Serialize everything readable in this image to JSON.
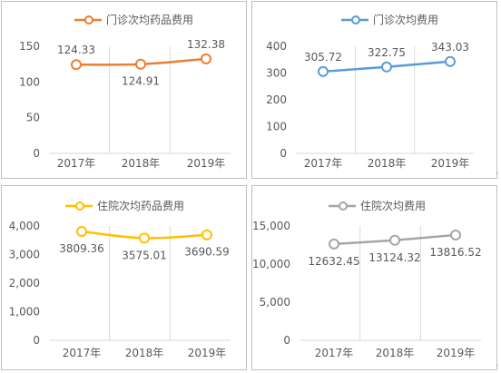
{
  "chart_data": [
    {
      "type": "line",
      "title": "",
      "categories": [
        "2017年",
        "2018年",
        "2019年"
      ],
      "series": [
        {
          "name": "门诊次均药品费用",
          "values": [
            124.33,
            124.91,
            132.38
          ]
        }
      ],
      "value_labels": [
        "124.33",
        "124.91",
        "132.38"
      ],
      "label_positions": [
        "above",
        "below",
        "above"
      ],
      "ylim": [
        0,
        150
      ],
      "ytick_values": [
        0,
        50,
        100,
        150
      ],
      "ytick_labels": [
        "0",
        "50",
        "100",
        "150"
      ],
      "color": "#ED7D31",
      "smooth": true,
      "grid": "vertical",
      "legend_position": "top"
    },
    {
      "type": "line",
      "title": "",
      "categories": [
        "2017年",
        "2018年",
        "2019年"
      ],
      "series": [
        {
          "name": "门诊次均费用",
          "values": [
            305.72,
            322.75,
            343.03
          ]
        }
      ],
      "value_labels": [
        "305.72",
        "322.75",
        "343.03"
      ],
      "label_positions": [
        "above",
        "above",
        "above"
      ],
      "ylim": [
        0,
        400
      ],
      "ytick_values": [
        0,
        100,
        200,
        300,
        400
      ],
      "ytick_labels": [
        "0",
        "100",
        "200",
        "300",
        "400"
      ],
      "color": "#5B9BD5",
      "smooth": false,
      "grid": "vertical",
      "legend_position": "top"
    },
    {
      "type": "line",
      "title": "",
      "categories": [
        "2017年",
        "2018年",
        "2019年"
      ],
      "series": [
        {
          "name": "住院次均药品费用",
          "values": [
            3809.36,
            3575.01,
            3690.59
          ]
        }
      ],
      "value_labels": [
        "3809.36",
        "3575.01",
        "3690.59"
      ],
      "label_positions": [
        "below",
        "below",
        "below"
      ],
      "ylim": [
        0,
        4000
      ],
      "ytick_values": [
        0,
        1000,
        2000,
        3000,
        4000
      ],
      "ytick_labels": [
        "0",
        "1,000",
        "2,000",
        "3,000",
        "4,000"
      ],
      "color": "#FFC000",
      "smooth": true,
      "grid": "vertical",
      "legend_position": "top"
    },
    {
      "type": "line",
      "title": "",
      "categories": [
        "2017年",
        "2018年",
        "2019年"
      ],
      "series": [
        {
          "name": "住院次均费用",
          "values": [
            12632.45,
            13124.32,
            13816.52
          ]
        }
      ],
      "value_labels": [
        "12632.45",
        "13124.32",
        "13816.52"
      ],
      "label_positions": [
        "below",
        "below",
        "below"
      ],
      "ylim": [
        0,
        15000
      ],
      "ytick_values": [
        0,
        5000,
        10000,
        15000
      ],
      "ytick_labels": [
        "0",
        "5,000",
        "10,000",
        "15,000"
      ],
      "color": "#A5A5A5",
      "smooth": false,
      "grid": "vertical",
      "legend_position": "top"
    }
  ]
}
